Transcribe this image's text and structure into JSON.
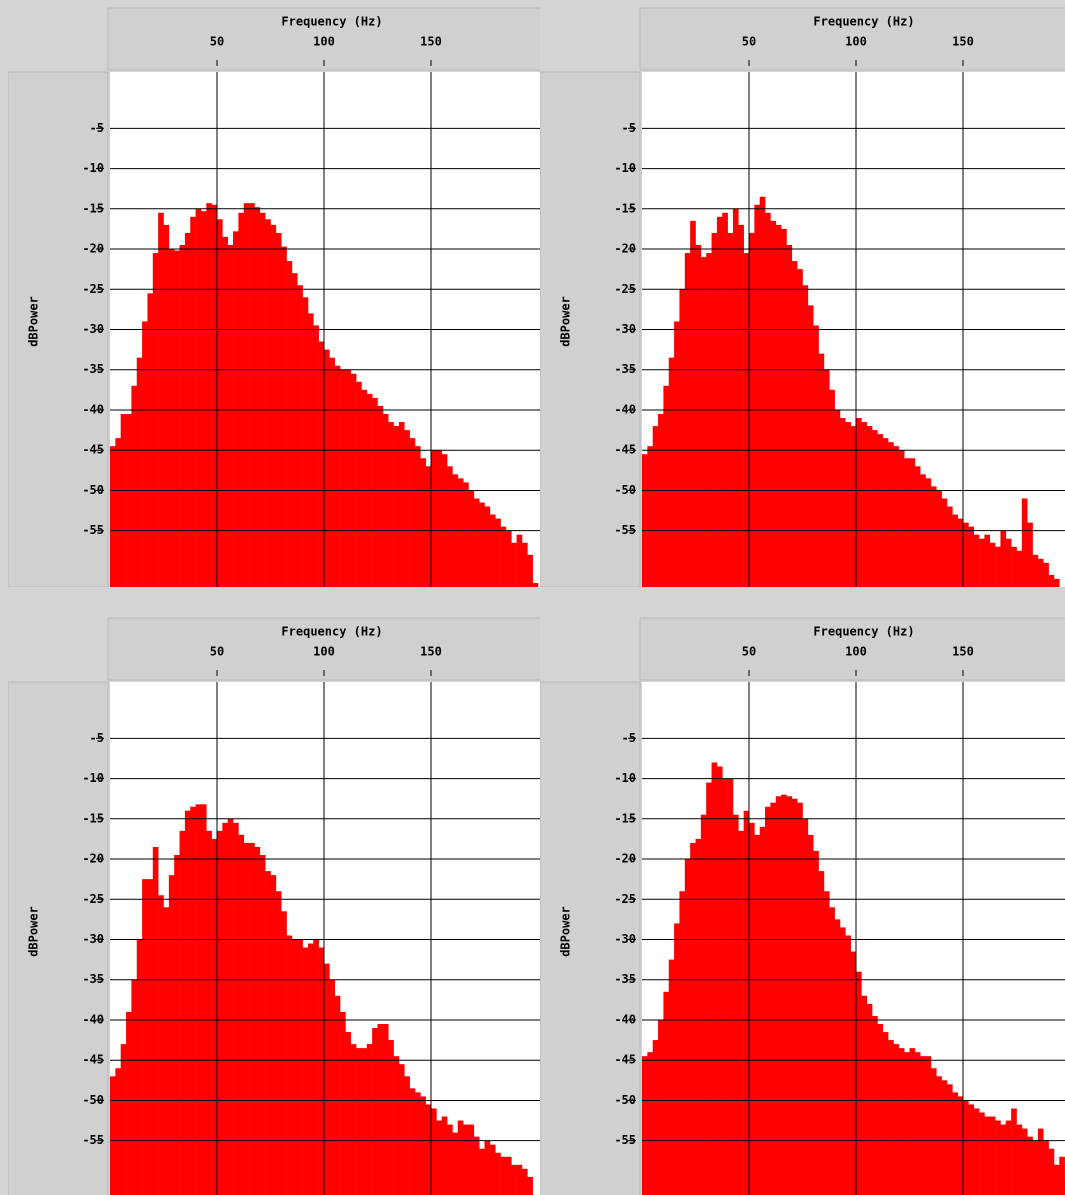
{
  "chart_data": [
    {
      "type": "histogram",
      "x_label": "Frequency (Hz)",
      "y_label": "dBPower",
      "color": "#ff0000",
      "grid": true,
      "xlim": [
        0,
        200
      ],
      "ylim": [
        -62,
        2
      ],
      "xticks": [
        50,
        100,
        150
      ],
      "yticks": [
        -5,
        -10,
        -15,
        -20,
        -25,
        -30,
        -35,
        -40,
        -45,
        -50,
        -55
      ],
      "bins": [
        0,
        2.5,
        5,
        7.5,
        10,
        12.5,
        15,
        17.5,
        20,
        22.5,
        25,
        27.5,
        30,
        32.5,
        35,
        37.5,
        40,
        42.5,
        45,
        47.5,
        50,
        52.5,
        55,
        57.5,
        60,
        62.5,
        65,
        67.5,
        70,
        72.5,
        75,
        77.5,
        80,
        82.5,
        85,
        87.5,
        90,
        92.5,
        95,
        97.5,
        100,
        102.5,
        105,
        107.5,
        110,
        112.5,
        115,
        117.5,
        120,
        122.5,
        125,
        127.5,
        130,
        132.5,
        135,
        137.5,
        140,
        142.5,
        145,
        147.5,
        150,
        152.5,
        155,
        157.5,
        160,
        162.5,
        165,
        167.5,
        170,
        172.5,
        175,
        177.5,
        180,
        182.5,
        185,
        187.5,
        190,
        192.5,
        195,
        197.5,
        200
      ],
      "values": [
        -44.5,
        -43.5,
        -40.5,
        -40.5,
        -37,
        -33.5,
        -29,
        -25.5,
        -20.5,
        -15.5,
        -17,
        -20,
        -20.2,
        -19.5,
        -18,
        -16,
        -15,
        -15.3,
        -14.3,
        -14.5,
        -16.3,
        -18.5,
        -19.5,
        -17.8,
        -15.5,
        -14.3,
        -14.3,
        -14.8,
        -15.5,
        -16.3,
        -17,
        -18,
        -19.7,
        -21.5,
        -23,
        -24.5,
        -26,
        -28,
        -29.5,
        -31.5,
        -32.5,
        -33.5,
        -34.5,
        -35,
        -35,
        -35.5,
        -36.5,
        -37.5,
        -38,
        -38.5,
        -39.5,
        -40.5,
        -41.5,
        -42,
        -41.5,
        -42.5,
        -43.5,
        -44.5,
        -46,
        -47,
        -45,
        -45,
        -45.5,
        -47,
        -48,
        -48.5,
        -49,
        -50,
        -51,
        -51.5,
        -52,
        -53,
        -53.5,
        -54.5,
        -55,
        -56.5,
        -55.5,
        -56.5,
        -58,
        -61.5
      ]
    },
    {
      "type": "histogram",
      "x_label": "Frequency (Hz)",
      "y_label": "dBPower",
      "color": "#ff0000",
      "grid": true,
      "xlim": [
        0,
        200
      ],
      "ylim": [
        -62,
        2
      ],
      "xticks": [
        50,
        100,
        150
      ],
      "yticks": [
        -5,
        -10,
        -15,
        -20,
        -25,
        -30,
        -35,
        -40,
        -45,
        -50,
        -55
      ],
      "bins": [
        0,
        2.5,
        5,
        7.5,
        10,
        12.5,
        15,
        17.5,
        20,
        22.5,
        25,
        27.5,
        30,
        32.5,
        35,
        37.5,
        40,
        42.5,
        45,
        47.5,
        50,
        52.5,
        55,
        57.5,
        60,
        62.5,
        65,
        67.5,
        70,
        72.5,
        75,
        77.5,
        80,
        82.5,
        85,
        87.5,
        90,
        92.5,
        95,
        97.5,
        100,
        102.5,
        105,
        107.5,
        110,
        112.5,
        115,
        117.5,
        120,
        122.5,
        125,
        127.5,
        130,
        132.5,
        135,
        137.5,
        140,
        142.5,
        145,
        147.5,
        150,
        152.5,
        155,
        157.5,
        160,
        162.5,
        165,
        167.5,
        170,
        172.5,
        175,
        177.5,
        180,
        182.5,
        185,
        187.5,
        190,
        192.5,
        195,
        197.5,
        200
      ],
      "values": [
        -45.5,
        -44.5,
        -42,
        -40.5,
        -37,
        -33.5,
        -29,
        -25,
        -20.5,
        -16.5,
        -19.5,
        -21,
        -20.5,
        -18,
        -16,
        -15.5,
        -18,
        -15,
        -17,
        -20.5,
        -18,
        -14.5,
        -13.5,
        -15.5,
        -16.5,
        -17,
        -17.5,
        -19.5,
        -21.5,
        -22.5,
        -24.5,
        -27,
        -29.5,
        -33,
        -35,
        -37.5,
        -40,
        -41,
        -41.5,
        -42,
        -41,
        -41.5,
        -42,
        -42.5,
        -43,
        -43.5,
        -44,
        -44.5,
        -45,
        -46,
        -46,
        -47,
        -48,
        -48.5,
        -49.5,
        -50,
        -51,
        -52,
        -53,
        -53.5,
        -54,
        -54.5,
        -55.5,
        -56,
        -55.5,
        -56.5,
        -57,
        -55,
        -56,
        -57,
        -57.5,
        -51,
        -54,
        -58,
        -58.5,
        -59,
        -60.5,
        -61,
        -62,
        -62
      ]
    },
    {
      "type": "histogram",
      "x_label": "Frequency (Hz)",
      "y_label": "dBPower",
      "color": "#ff0000",
      "grid": true,
      "xlim": [
        0,
        200
      ],
      "ylim": [
        -62,
        2
      ],
      "xticks": [
        50,
        100,
        150
      ],
      "yticks": [
        -5,
        -10,
        -15,
        -20,
        -25,
        -30,
        -35,
        -40,
        -45,
        -50,
        -55
      ],
      "bins": [
        0,
        2.5,
        5,
        7.5,
        10,
        12.5,
        15,
        17.5,
        20,
        22.5,
        25,
        27.5,
        30,
        32.5,
        35,
        37.5,
        40,
        42.5,
        45,
        47.5,
        50,
        52.5,
        55,
        57.5,
        60,
        62.5,
        65,
        67.5,
        70,
        72.5,
        75,
        77.5,
        80,
        82.5,
        85,
        87.5,
        90,
        92.5,
        95,
        97.5,
        100,
        102.5,
        105,
        107.5,
        110,
        112.5,
        115,
        117.5,
        120,
        122.5,
        125,
        127.5,
        130,
        132.5,
        135,
        137.5,
        140,
        142.5,
        145,
        147.5,
        150,
        152.5,
        155,
        157.5,
        160,
        162.5,
        165,
        167.5,
        170,
        172.5,
        175,
        177.5,
        180,
        182.5,
        185,
        187.5,
        190,
        192.5,
        195,
        197.5,
        200
      ],
      "values": [
        -47,
        -46,
        -43,
        -39,
        -35,
        -30,
        -22.5,
        -22.5,
        -18.5,
        -24.5,
        -26,
        -22,
        -19.5,
        -16.5,
        -14,
        -13.5,
        -13.2,
        -13.2,
        -16.5,
        -17.5,
        -16.5,
        -15.5,
        -15,
        -15.5,
        -17,
        -18,
        -18,
        -18.5,
        -19.5,
        -21.5,
        -22,
        -24,
        -26.5,
        -29.5,
        -30,
        -30,
        -31,
        -30.5,
        -30,
        -31,
        -33,
        -35,
        -37,
        -39,
        -41.5,
        -43,
        -43.5,
        -43.5,
        -43,
        -41,
        -40.5,
        -40.5,
        -42.5,
        -44.5,
        -45.5,
        -47,
        -48.5,
        -49,
        -49.5,
        -50.5,
        -51,
        -52.5,
        -52,
        -53,
        -54,
        -52.5,
        -53,
        -53,
        -54.5,
        -56,
        -55,
        -55.5,
        -56.5,
        -57,
        -57,
        -58,
        -58,
        -58.5,
        -59.5,
        -62
      ]
    },
    {
      "type": "histogram",
      "x_label": "Frequency (Hz)",
      "y_label": "dBPower",
      "color": "#ff0000",
      "grid": true,
      "xlim": [
        0,
        200
      ],
      "ylim": [
        -62,
        2
      ],
      "xticks": [
        50,
        100,
        150
      ],
      "yticks": [
        -5,
        -10,
        -15,
        -20,
        -25,
        -30,
        -35,
        -40,
        -45,
        -50,
        -55
      ],
      "bins": [
        0,
        2.5,
        5,
        7.5,
        10,
        12.5,
        15,
        17.5,
        20,
        22.5,
        25,
        27.5,
        30,
        32.5,
        35,
        37.5,
        40,
        42.5,
        45,
        47.5,
        50,
        52.5,
        55,
        57.5,
        60,
        62.5,
        65,
        67.5,
        70,
        72.5,
        75,
        77.5,
        80,
        82.5,
        85,
        87.5,
        90,
        92.5,
        95,
        97.5,
        100,
        102.5,
        105,
        107.5,
        110,
        112.5,
        115,
        117.5,
        120,
        122.5,
        125,
        127.5,
        130,
        132.5,
        135,
        137.5,
        140,
        142.5,
        145,
        147.5,
        150,
        152.5,
        155,
        157.5,
        160,
        162.5,
        165,
        167.5,
        170,
        172.5,
        175,
        177.5,
        180,
        182.5,
        185,
        187.5,
        190,
        192.5,
        195,
        197.5,
        200
      ],
      "values": [
        -44.5,
        -44,
        -42.5,
        -40,
        -36.5,
        -32.5,
        -28,
        -24,
        -20,
        -18,
        -17.5,
        -14.5,
        -10.5,
        -8,
        -8.5,
        -10,
        -10,
        -14.5,
        -16.5,
        -14,
        -15.5,
        -17,
        -16,
        -13.5,
        -13,
        -12.2,
        -12,
        -12.2,
        -12.5,
        -13,
        -15,
        -17,
        -19,
        -21.5,
        -24,
        -26,
        -27.5,
        -28.5,
        -29.5,
        -31.5,
        -34,
        -37,
        -38,
        -39.5,
        -40.5,
        -41.5,
        -42.5,
        -43,
        -43.5,
        -44,
        -43.5,
        -44,
        -44.5,
        -44.5,
        -46,
        -47,
        -47.5,
        -48,
        -49,
        -49.5,
        -50,
        -50.5,
        -51,
        -51.5,
        -52,
        -52,
        -52.5,
        -53,
        -52.5,
        -51,
        -53,
        -53.5,
        -54.5,
        -55,
        -53.5,
        -55,
        -56,
        -58,
        -57,
        -60
      ]
    }
  ]
}
